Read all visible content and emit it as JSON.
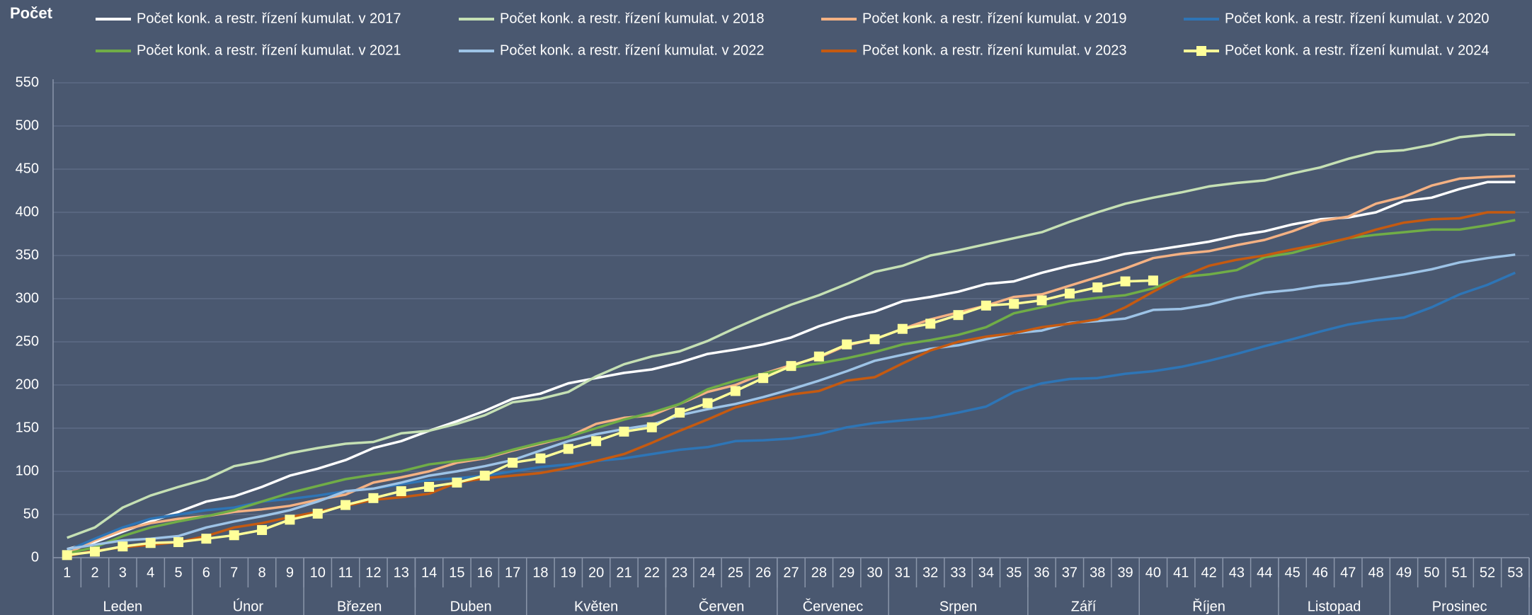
{
  "chart_data": {
    "type": "line",
    "y_label": "Počet",
    "categories": [
      "1",
      "2",
      "3",
      "4",
      "5",
      "6",
      "7",
      "8",
      "9",
      "10",
      "11",
      "12",
      "13",
      "14",
      "15",
      "16",
      "17",
      "18",
      "19",
      "20",
      "21",
      "22",
      "23",
      "24",
      "25",
      "26",
      "27",
      "28",
      "29",
      "30",
      "31",
      "32",
      "33",
      "34",
      "35",
      "36",
      "37",
      "38",
      "39",
      "40",
      "41",
      "42",
      "43",
      "44",
      "45",
      "46",
      "47",
      "48",
      "49",
      "50",
      "51",
      "52",
      "53"
    ],
    "month_groups": [
      {
        "label": "Leden",
        "span": 5
      },
      {
        "label": "Únor",
        "span": 4
      },
      {
        "label": "Březen",
        "span": 4
      },
      {
        "label": "Duben",
        "span": 4
      },
      {
        "label": "Květen",
        "span": 5
      },
      {
        "label": "Červen",
        "span": 4
      },
      {
        "label": "Červenec",
        "span": 4
      },
      {
        "label": "Srpen",
        "span": 5
      },
      {
        "label": "Září",
        "span": 4
      },
      {
        "label": "Říjen",
        "span": 5
      },
      {
        "label": "Listopad",
        "span": 4
      },
      {
        "label": "Prosinec",
        "span": 5
      }
    ],
    "ylim": [
      0,
      550
    ],
    "yticks": [
      0,
      50,
      100,
      150,
      200,
      250,
      300,
      350,
      400,
      450,
      500,
      550
    ],
    "grid": true,
    "series": [
      {
        "name": "Počet konk. a restr. řízení kumulat. v 2017",
        "color": "#ffffff",
        "values": [
          10,
          18,
          30,
          42,
          53,
          65,
          71,
          82,
          95,
          103,
          113,
          127,
          135,
          147,
          158,
          170,
          184,
          190,
          202,
          208,
          214,
          218,
          226,
          236,
          241,
          247,
          255,
          268,
          278,
          285,
          297,
          302,
          308,
          317,
          320,
          330,
          338,
          344,
          352,
          356,
          361,
          366,
          373,
          378,
          386,
          392,
          394,
          400,
          413,
          417,
          427,
          435,
          435
        ]
      },
      {
        "name": "Počet konk. a restr. řízení kumulat. v 2018",
        "color": "#c5e0b4",
        "values": [
          23,
          35,
          58,
          72,
          82,
          91,
          106,
          112,
          121,
          127,
          132,
          134,
          144,
          147,
          155,
          165,
          180,
          184,
          192,
          210,
          224,
          233,
          239,
          251,
          266,
          280,
          293,
          304,
          317,
          331,
          338,
          350,
          356,
          363,
          370,
          377,
          389,
          400,
          410,
          417,
          423,
          430,
          434,
          437,
          445,
          452,
          462,
          470,
          472,
          478,
          487,
          490,
          490
        ]
      },
      {
        "name": "Počet konk. a restr. řízení kumulat. v 2019",
        "color": "#f4b183",
        "values": [
          5,
          20,
          32,
          40,
          45,
          48,
          53,
          56,
          60,
          67,
          73,
          87,
          93,
          100,
          110,
          115,
          124,
          132,
          140,
          155,
          162,
          165,
          178,
          192,
          200,
          213,
          223,
          232,
          246,
          253,
          265,
          276,
          284,
          292,
          302,
          305,
          315,
          325,
          335,
          347,
          352,
          355,
          362,
          368,
          378,
          390,
          395,
          410,
          418,
          431,
          439,
          441,
          442
        ]
      },
      {
        "name": "Počet konk. a restr. řízení kumulat. v 2020",
        "color": "#2e75b6",
        "values": [
          8,
          22,
          35,
          45,
          50,
          55,
          58,
          65,
          68,
          72,
          77,
          80,
          85,
          90,
          92,
          95,
          100,
          105,
          108,
          112,
          115,
          120,
          125,
          128,
          135,
          136,
          138,
          143,
          151,
          156,
          159,
          162,
          168,
          175,
          192,
          202,
          207,
          208,
          213,
          216,
          221,
          228,
          236,
          245,
          253,
          262,
          270,
          275,
          278,
          290,
          305,
          316,
          330
        ]
      },
      {
        "name": "Počet konk. a restr. řízení kumulat. v 2021",
        "color": "#70ad47",
        "values": [
          5,
          12,
          25,
          35,
          42,
          48,
          55,
          65,
          75,
          83,
          91,
          96,
          100,
          108,
          112,
          116,
          125,
          133,
          140,
          150,
          160,
          168,
          178,
          195,
          205,
          213,
          220,
          225,
          231,
          238,
          247,
          252,
          258,
          267,
          283,
          290,
          297,
          301,
          304,
          312,
          325,
          328,
          333,
          348,
          353,
          362,
          370,
          374,
          377,
          380,
          380,
          385,
          391
        ]
      },
      {
        "name": "Počet konk. a restr. řízení kumulat. v 2022",
        "color": "#9dc3e6",
        "values": [
          10,
          15,
          20,
          22,
          25,
          35,
          42,
          48,
          55,
          65,
          77,
          80,
          87,
          95,
          100,
          106,
          113,
          124,
          135,
          143,
          149,
          154,
          165,
          172,
          178,
          186,
          195,
          205,
          216,
          228,
          235,
          242,
          246,
          253,
          260,
          263,
          272,
          274,
          277,
          287,
          288,
          293,
          301,
          307,
          310,
          315,
          318,
          323,
          328,
          334,
          342,
          347,
          351
        ]
      },
      {
        "name": "Počet konk. a restr. řízení kumulat. v 2023",
        "color": "#c55a11",
        "values": [
          2,
          8,
          12,
          15,
          18,
          25,
          35,
          40,
          47,
          53,
          60,
          67,
          70,
          74,
          87,
          92,
          95,
          98,
          104,
          112,
          120,
          133,
          147,
          160,
          174,
          182,
          189,
          193,
          205,
          209,
          225,
          240,
          250,
          256,
          260,
          267,
          271,
          276,
          290,
          308,
          325,
          338,
          345,
          350,
          357,
          363,
          370,
          380,
          388,
          392,
          393,
          400,
          400
        ]
      },
      {
        "name": "Počet konk. a restr. řízení kumulat. v 2024",
        "color": "#ffff99",
        "marker": "square",
        "values": [
          3,
          7,
          13,
          17,
          18,
          22,
          26,
          32,
          44,
          51,
          61,
          69,
          77,
          82,
          87,
          95,
          110,
          115,
          126,
          135,
          146,
          151,
          168,
          179,
          193,
          208,
          222,
          233,
          247,
          253,
          265,
          271,
          281,
          292,
          294,
          298,
          306,
          313,
          320,
          321,
          null,
          null,
          null,
          null,
          null,
          null,
          null,
          null,
          null,
          null,
          null,
          null,
          null
        ]
      }
    ]
  }
}
